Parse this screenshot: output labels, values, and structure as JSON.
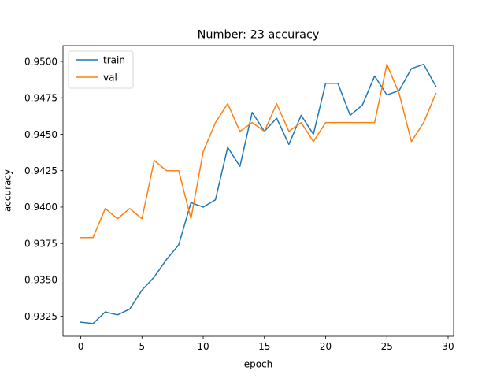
{
  "chart_data": {
    "type": "line",
    "title": "Number: 23 accuracy",
    "xlabel": "epoch",
    "ylabel": "accuracy",
    "xlim": [
      -1.45,
      30.45
    ],
    "ylim": [
      0.93113,
      0.95108
    ],
    "xticks": [
      0,
      5,
      10,
      15,
      20,
      25,
      30
    ],
    "xtick_labels": [
      "0",
      "5",
      "10",
      "15",
      "20",
      "25",
      "30"
    ],
    "yticks": [
      0.9325,
      0.935,
      0.9375,
      0.94,
      0.9425,
      0.945,
      0.9475,
      0.95
    ],
    "ytick_labels": [
      "0.9325",
      "0.9350",
      "0.9375",
      "0.9400",
      "0.9425",
      "0.9450",
      "0.9475",
      "0.9500"
    ],
    "grid": false,
    "legend_position": "top-left",
    "x": [
      0,
      1,
      2,
      3,
      4,
      5,
      6,
      7,
      8,
      9,
      10,
      11,
      12,
      13,
      14,
      15,
      16,
      17,
      18,
      19,
      20,
      21,
      22,
      23,
      24,
      25,
      26,
      27,
      28,
      29
    ],
    "series": [
      {
        "name": "train",
        "color": "#1f77b4",
        "values": [
          0.9321,
          0.932,
          0.9328,
          0.9326,
          0.933,
          0.9343,
          0.9352,
          0.9364,
          0.9374,
          0.9403,
          0.94,
          0.9405,
          0.9441,
          0.9428,
          0.9465,
          0.9452,
          0.9461,
          0.9443,
          0.9463,
          0.945,
          0.9485,
          0.9485,
          0.9463,
          0.947,
          0.949,
          0.9477,
          0.948,
          0.9495,
          0.9498,
          0.9483
        ]
      },
      {
        "name": "val",
        "color": "#ff7f0e",
        "values": [
          0.9379,
          0.9379,
          0.9399,
          0.9392,
          0.9399,
          0.9392,
          0.9432,
          0.9425,
          0.9425,
          0.9392,
          0.9438,
          0.9458,
          0.9471,
          0.9452,
          0.9458,
          0.9452,
          0.9471,
          0.9452,
          0.9458,
          0.9445,
          0.9458,
          0.9458,
          0.9458,
          0.9458,
          0.9458,
          0.9498,
          0.9478,
          0.9445,
          0.9458,
          0.9478
        ]
      }
    ]
  }
}
